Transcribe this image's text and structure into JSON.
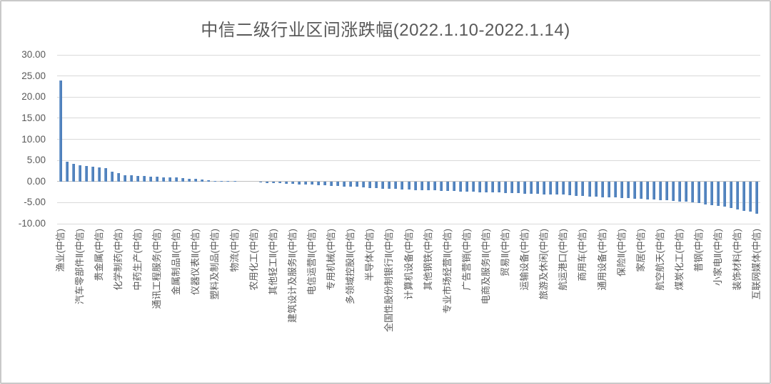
{
  "frame": {
    "border_color": "#c9c9c9",
    "background": "#ffffff"
  },
  "chart_data": {
    "type": "bar",
    "title": "中信二级行业区间涨跌幅(2022.1.10-2022.1.14)",
    "title_color": "#595959",
    "xlabel": "",
    "ylabel": "",
    "legend": "none",
    "grid": true,
    "ylim": [
      -10,
      30
    ],
    "y_ticks": [
      30,
      25,
      20,
      15,
      10,
      5,
      0,
      -5,
      -10
    ],
    "y_tick_decimals": 2,
    "bar_color": "#4e80bc",
    "bar_highlight_color": "#8fb1d8",
    "gridline_color": "#d9d9d9",
    "axis_line_color": "#bfbfbf",
    "tick_label_color": "#595959",
    "x_label_color": "#595959",
    "label_interval": 3,
    "x_labels_note": "only every 3rd bar is labeled, starting at the first bar",
    "x_labels": [
      "渔业(中信)",
      "汽车零部件Ⅱ(中信)",
      "贵金属(中信)",
      "化学制药(中信)",
      "中药生产(中信)",
      "通讯工程服务(中信)",
      "金属制品Ⅱ(中信)",
      "仪器仪表Ⅱ(中信)",
      "塑料及制品(中信)",
      "物流(中信)",
      "农用化工(中信)",
      "其他轻工Ⅱ(中信)",
      "建筑设计及服务Ⅱ(中信)",
      "电信运营Ⅱ(中信)",
      "专用机械(中信)",
      "多领域控股Ⅱ(中信)",
      "半导体(中信)",
      "全国性股份制银行Ⅱ(中信)",
      "计算机设备(中信)",
      "其他钢铁(中信)",
      "专业市场经营Ⅱ(中信)",
      "广告营销(中信)",
      "电商及服务Ⅱ(中信)",
      "贸易Ⅱ(中信)",
      "运输设备(中信)",
      "旅游及休闲(中信)",
      "航运港口(中信)",
      "商用车(中信)",
      "通用设备(中信)",
      "保险Ⅱ(中信)",
      "家居(中信)",
      "航空航天(中信)",
      "煤炭化工(中信)",
      "普钢(中信)",
      "小家电Ⅱ(中信)",
      "装饰材料(中信)",
      "互联网媒体(中信)"
    ],
    "values": [
      24.0,
      4.6,
      4.2,
      3.9,
      3.7,
      3.5,
      3.3,
      3.1,
      2.4,
      1.9,
      1.5,
      1.4,
      1.3,
      1.25,
      1.2,
      1.1,
      1.05,
      1.0,
      0.9,
      0.8,
      0.7,
      0.55,
      0.4,
      0.25,
      0.15,
      0.1,
      0.05,
      0.05,
      0.0,
      0.0,
      -0.1,
      -0.2,
      -0.3,
      -0.35,
      -0.45,
      -0.5,
      -0.6,
      -0.65,
      -0.7,
      -0.8,
      -0.85,
      -0.95,
      -1.0,
      -1.1,
      -1.15,
      -1.25,
      -1.3,
      -1.4,
      -1.5,
      -1.55,
      -1.65,
      -1.75,
      -1.8,
      -1.9,
      -1.95,
      -2.0,
      -2.05,
      -2.1,
      -2.15,
      -2.2,
      -2.25,
      -2.3,
      -2.35,
      -2.4,
      -2.45,
      -2.5,
      -2.55,
      -2.6,
      -2.65,
      -2.7,
      -2.75,
      -2.8,
      -2.85,
      -2.9,
      -2.95,
      -3.0,
      -3.05,
      -3.1,
      -3.15,
      -3.25,
      -3.4,
      -3.5,
      -3.55,
      -3.6,
      -3.7,
      -3.75,
      -3.8,
      -3.9,
      -4.0,
      -4.1,
      -4.15,
      -4.2,
      -4.3,
      -4.4,
      -4.5,
      -4.6,
      -4.7,
      -4.85,
      -5.0,
      -5.1,
      -5.4,
      -5.6,
      -5.8,
      -6.0,
      -6.3,
      -6.6,
      -6.9,
      -7.2,
      -7.7
    ]
  }
}
